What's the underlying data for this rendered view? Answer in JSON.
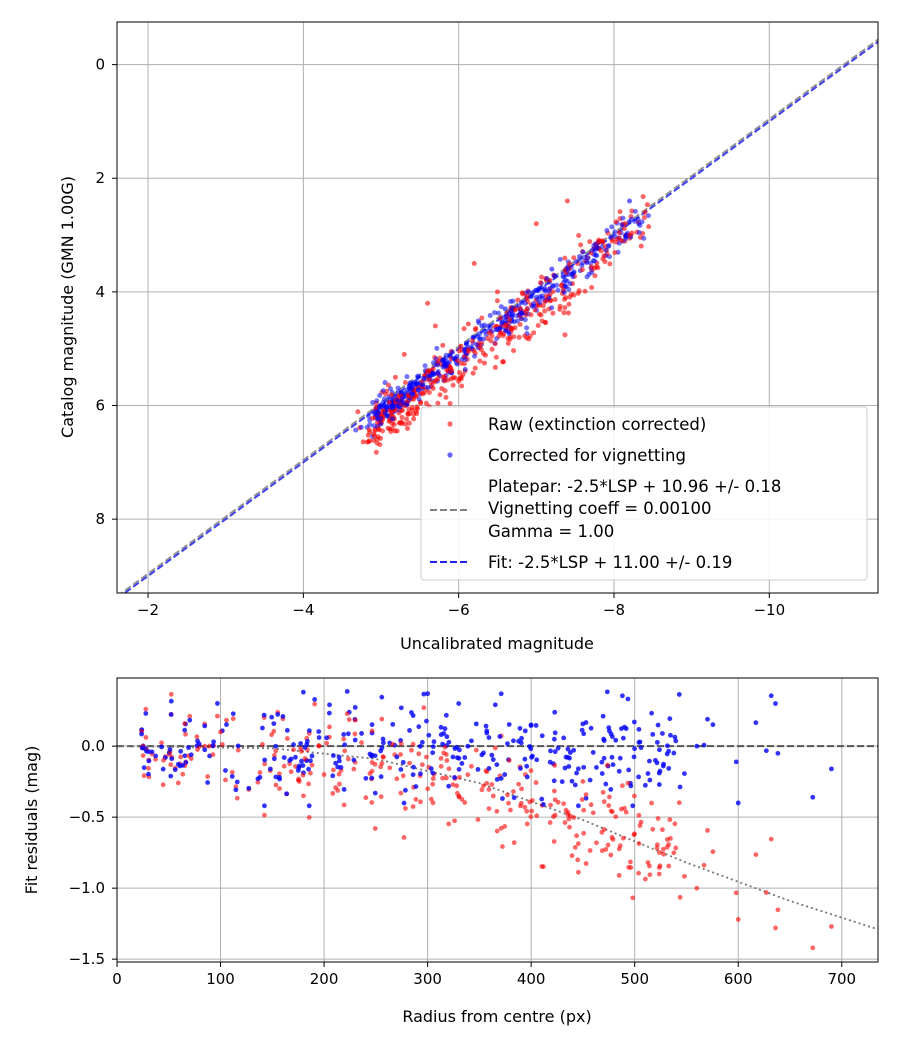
{
  "chart_data": [
    {
      "type": "scatter",
      "xlabel": "Uncalibrated magnitude",
      "ylabel": "Catalog magnitude (GMN 1.00G)",
      "xlim": [
        -1.6,
        -11.4
      ],
      "ylim": [
        9.3,
        -0.75
      ],
      "grid": true,
      "xticks": [
        -2,
        -4,
        -6,
        -8,
        -10
      ],
      "xtick_labels": [
        "−2",
        "−4",
        "−6",
        "−8",
        "−10"
      ],
      "yticks": [
        0,
        2,
        4,
        6,
        8
      ],
      "ytick_labels": [
        "0",
        "2",
        "4",
        "6",
        "8"
      ],
      "legend_position": "lower-right",
      "legend": {
        "raw": "Raw (extinction corrected)",
        "corrected": "Corrected for vignetting",
        "platepar_lines": [
          "Platepar: -2.5*LSP + 10.96 +/- 0.18",
          "Vignetting coeff = 0.00100",
          "Gamma = 1.00"
        ],
        "fit": "Fit: -2.5*LSP + 11.00 +/- 0.19"
      },
      "series": [
        {
          "name": "Raw (extinction corrected)",
          "color": "#ff0000",
          "x": [
            -7.4,
            -8.4,
            -6.2,
            -5.6,
            -5.7,
            -7.0,
            -5.3,
            -5.9,
            -6.5,
            -8.1
          ],
          "y": [
            2.4,
            2.6,
            3.5,
            4.2,
            4.6,
            2.8,
            5.1,
            5.4,
            4.0,
            3.1
          ]
        },
        {
          "name": "Corrected for vignetting",
          "color": "#0000ff",
          "x": [
            -8.2,
            -7.6,
            -6.9,
            -6.3,
            -5.8,
            -5.4,
            -6.6,
            -7.2
          ],
          "y": [
            2.4,
            3.3,
            4.0,
            4.6,
            5.2,
            5.7,
            4.3,
            3.6
          ]
        }
      ],
      "lines": [
        {
          "name": "Platepar",
          "slope": 1,
          "intercept": 10.96,
          "color": "#808080",
          "style": "dashed"
        },
        {
          "name": "Fit",
          "slope": 1,
          "intercept": 11.0,
          "color": "#2222ee",
          "style": "dashed"
        }
      ]
    },
    {
      "type": "scatter",
      "xlabel": "Radius from centre (px)",
      "ylabel": "Fit residuals (mag)",
      "xlim": [
        0,
        735
      ],
      "ylim": [
        -1.52,
        0.48
      ],
      "grid": true,
      "xticks": [
        0,
        100,
        200,
        300,
        400,
        500,
        600,
        700
      ],
      "xtick_labels": [
        "0",
        "100",
        "200",
        "300",
        "400",
        "500",
        "600",
        "700"
      ],
      "yticks": [
        0.0,
        -0.5,
        -1.0,
        -1.5
      ],
      "ytick_labels": [
        "0.0",
        "−0.5",
        "−1.0",
        "−1.5"
      ],
      "series": [
        {
          "name": "Raw (extinction corrected)",
          "color": "#ff0000",
          "x": [
            672,
            690,
            636,
            600,
            560,
            485,
            445,
            380,
            300,
            200,
            100,
            45
          ],
          "y": [
            -1.42,
            -1.27,
            -1.28,
            -1.22,
            -1.0,
            -0.91,
            -0.8,
            -0.45,
            -0.3,
            -0.2,
            0.1,
            -0.1
          ]
        },
        {
          "name": "Corrected for vignetting",
          "color": "#0000ff",
          "x": [
            690,
            672,
            636,
            600,
            560,
            520,
            470,
            430,
            400,
            330,
            300,
            180
          ],
          "y": [
            -0.16,
            -0.36,
            0.3,
            -0.4,
            0.0,
            -0.1,
            0.05,
            -0.25,
            0.15,
            0.3,
            0.37,
            0.38
          ]
        }
      ],
      "lines": [
        {
          "name": "zero",
          "points": [
            [
              0,
              0
            ],
            [
              735,
              0
            ]
          ],
          "color": "#555555",
          "style": "dashed"
        },
        {
          "name": "vignetting model",
          "points": [
            [
              0,
              0
            ],
            [
              150,
              -0.015
            ],
            [
              250,
              -0.09
            ],
            [
              350,
              -0.26
            ],
            [
              450,
              -0.52
            ],
            [
              550,
              -0.82
            ],
            [
              650,
              -1.09
            ],
            [
              735,
              -1.29
            ]
          ],
          "color": "#777777",
          "style": "dotted"
        }
      ]
    }
  ]
}
